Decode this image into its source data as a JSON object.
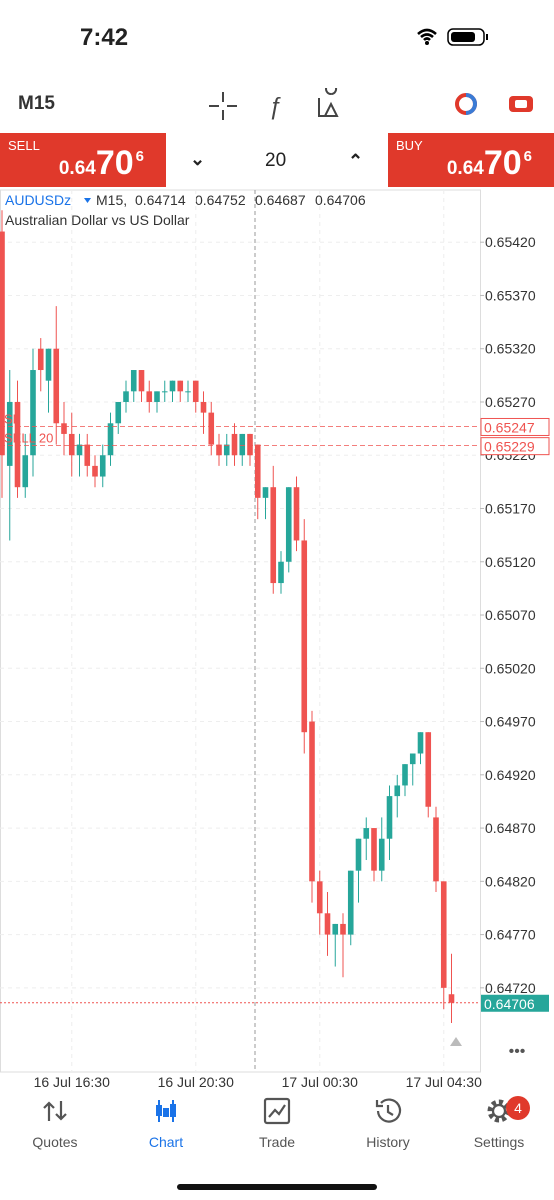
{
  "status_bar": {
    "time": "7:42"
  },
  "toolbar": {
    "timeframe": "M15"
  },
  "trade_panel": {
    "sell": {
      "label": "SELL",
      "price_main": "0.64",
      "price_big": "70",
      "price_sup": "6"
    },
    "volume": "20",
    "buy": {
      "label": "BUY",
      "price_main": "0.64",
      "price_big": "70",
      "price_sup": "6"
    }
  },
  "chart_data": {
    "type": "candlestick",
    "symbol": "AUDUSDz",
    "info_label": "M15,",
    "subtitle": "Australian Dollar vs US Dollar",
    "categories": [
      null,
      null,
      null,
      null,
      null,
      null,
      null,
      null,
      null,
      "16 Jul 16:30",
      null,
      null,
      null,
      null,
      null,
      null,
      null,
      null,
      null,
      null,
      null,
      null,
      null,
      null,
      null,
      "16 Jul 20:30",
      null,
      null,
      null,
      null,
      null,
      null,
      null,
      null,
      null,
      null,
      null,
      null,
      null,
      null,
      null,
      "17 Jul 00:30",
      null,
      null,
      null,
      null,
      null,
      null,
      null,
      null,
      null,
      null,
      null,
      null,
      null,
      null,
      null,
      "17 Jul 04:30",
      null
    ],
    "open": [
      0.6543,
      0.6521,
      0.6527,
      0.6519,
      0.6522,
      0.6532,
      0.6529,
      0.6532,
      0.6525,
      0.6524,
      0.6522,
      0.6523,
      0.6521,
      0.652,
      0.6522,
      0.6525,
      0.6527,
      0.6528,
      0.653,
      0.6528,
      0.6527,
      0.6528,
      0.6528,
      0.6529,
      0.6528,
      0.6529,
      0.6527,
      0.6526,
      0.6523,
      0.6522,
      0.6524,
      0.6522,
      0.6524,
      0.6523,
      0.6518,
      0.6519,
      0.651,
      0.6512,
      0.6519,
      0.6514,
      0.6497,
      0.6482,
      0.6479,
      0.6477,
      0.6478,
      0.6477,
      0.6483,
      0.6486,
      0.6487,
      0.6483,
      0.6486,
      0.649,
      0.6491,
      0.6493,
      0.6494,
      0.6496,
      0.6488,
      0.6482,
      0.64714
    ],
    "high": [
      0.6545,
      0.653,
      0.6529,
      0.6524,
      0.6532,
      0.6533,
      0.6532,
      0.6536,
      0.6527,
      0.6526,
      0.6524,
      0.6524,
      0.6522,
      0.6523,
      0.6526,
      0.6527,
      0.6529,
      0.653,
      0.653,
      0.6529,
      0.6528,
      0.6529,
      0.6529,
      0.6529,
      0.6529,
      0.6529,
      0.6528,
      0.6527,
      0.6524,
      0.6524,
      0.6525,
      0.6524,
      0.6524,
      0.6523,
      0.6519,
      0.6521,
      0.6513,
      0.6519,
      0.652,
      0.6516,
      0.6498,
      0.6483,
      0.6481,
      0.6478,
      0.6479,
      0.6483,
      0.6486,
      0.6488,
      0.6487,
      0.6488,
      0.6491,
      0.6492,
      0.6493,
      0.6494,
      0.6496,
      0.6496,
      0.6489,
      0.6482,
      0.64752
    ],
    "low": [
      0.6518,
      0.6514,
      0.6518,
      0.6518,
      0.652,
      0.6528,
      0.6526,
      0.6523,
      0.6522,
      0.652,
      0.652,
      0.652,
      0.6519,
      0.6519,
      0.6521,
      0.6524,
      0.6526,
      0.6527,
      0.6527,
      0.6526,
      0.6526,
      0.6527,
      0.6527,
      0.6527,
      0.6527,
      0.6526,
      0.6524,
      0.6522,
      0.6521,
      0.6521,
      0.6521,
      0.6521,
      0.6521,
      0.6516,
      0.6516,
      0.6509,
      0.6509,
      0.6511,
      0.6513,
      0.6494,
      0.648,
      0.6477,
      0.6475,
      0.6474,
      0.6473,
      0.6476,
      0.648,
      0.6484,
      0.6482,
      0.6482,
      0.6484,
      0.6488,
      0.649,
      0.6491,
      0.6493,
      0.6488,
      0.6481,
      0.647,
      0.64687
    ],
    "close": [
      0.6522,
      0.6527,
      0.6519,
      0.6522,
      0.653,
      0.653,
      0.6532,
      0.6525,
      0.6524,
      0.6522,
      0.6523,
      0.6521,
      0.652,
      0.6522,
      0.6525,
      0.6527,
      0.6528,
      0.653,
      0.6528,
      0.6527,
      0.6528,
      0.6528,
      0.6529,
      0.6528,
      0.6528,
      0.6527,
      0.6526,
      0.6523,
      0.6522,
      0.6523,
      0.6522,
      0.6524,
      0.6522,
      0.6518,
      0.6519,
      0.651,
      0.6512,
      0.6519,
      0.6514,
      0.6496,
      0.6482,
      0.6479,
      0.6477,
      0.6478,
      0.6477,
      0.6483,
      0.6486,
      0.6487,
      0.6483,
      0.6486,
      0.649,
      0.6491,
      0.6493,
      0.6494,
      0.6496,
      0.6489,
      0.6482,
      0.6472,
      0.64706
    ],
    "up_color": "#26a69a",
    "down_color": "#ef5350",
    "ylim": [
      0.64641,
      0.65469
    ],
    "yticks": [
      {
        "value": 0.6542,
        "label": "0.65420"
      },
      {
        "value": 0.6537,
        "label": "0.65370"
      },
      {
        "value": 0.6532,
        "label": "0.65320"
      },
      {
        "value": 0.6527,
        "label": "0.65270"
      },
      {
        "value": 0.6522,
        "label": "0.65220"
      },
      {
        "value": 0.6517,
        "label": "0.65170"
      },
      {
        "value": 0.6512,
        "label": "0.65120"
      },
      {
        "value": 0.6507,
        "label": "0.65070"
      },
      {
        "value": 0.6502,
        "label": "0.65020"
      },
      {
        "value": 0.6497,
        "label": "0.64970"
      },
      {
        "value": 0.6492,
        "label": "0.64920"
      },
      {
        "value": 0.6487,
        "label": "0.64870"
      },
      {
        "value": 0.6482,
        "label": "0.64820"
      },
      {
        "value": 0.6477,
        "label": "0.64770"
      },
      {
        "value": 0.6472,
        "label": "0.64720"
      }
    ],
    "grid": true,
    "orders": [
      {
        "label": "SL",
        "price": 0.65247
      },
      {
        "label": "SELL 20",
        "price": 0.65229
      }
    ],
    "last_price": 0.64706
  },
  "nav": {
    "items": [
      "Quotes",
      "Chart",
      "Trade",
      "History",
      "Settings"
    ],
    "active": 1,
    "settings_badge": "4"
  }
}
